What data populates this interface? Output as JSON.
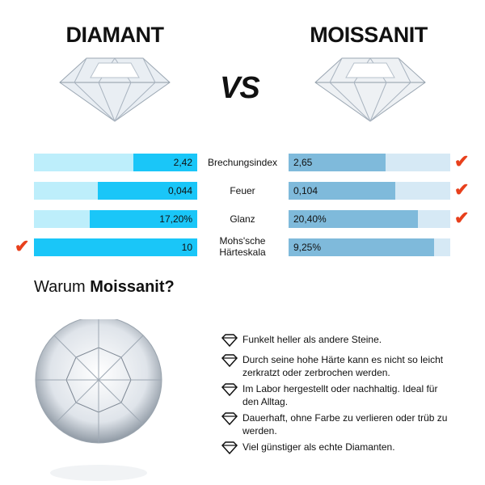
{
  "header": {
    "left_title": "DIAMANT",
    "vs": "VS",
    "right_title": "MOISSANIT"
  },
  "colors": {
    "diamond_fill": "#1ac6f8",
    "diamond_track": "#bdeefb",
    "moissanite_fill": "#7fbadb",
    "moissanite_track": "#d6e9f5",
    "check": "#e8401c"
  },
  "comparison": [
    {
      "label": "Brechungsindex",
      "diamant": "2,42",
      "moissanit": "2,65",
      "diamant_fill": 0.39,
      "moissanit_fill": 0.6,
      "winner": "moissanit"
    },
    {
      "label": "Feuer",
      "diamant": "0,044",
      "moissanit": "0,104",
      "diamant_fill": 0.61,
      "moissanit_fill": 0.66,
      "winner": "moissanit"
    },
    {
      "label": "Glanz",
      "diamant": "17,20%",
      "moissanit": "20,40%",
      "diamant_fill": 0.66,
      "moissanit_fill": 0.8,
      "winner": "moissanit"
    },
    {
      "label": "Mohs'sche Härteskala",
      "diamant": "10",
      "moissanit": "9,25%",
      "diamant_fill": 1.0,
      "moissanit_fill": 0.9,
      "winner": "diamant"
    }
  ],
  "why": {
    "prefix": "Warum ",
    "bold": "Moissanit?"
  },
  "features": [
    "Funkelt heller als andere Steine.",
    "Durch seine hohe Härte kann es nicht so leicht zerkratzt oder zerbrochen werden.",
    "Im Labor hergestellt oder nachhaltig. Ideal für den Alltag.",
    "Dauerhaft, ohne Farbe zu verlieren oder trüb zu werden.",
    "Viel günstiger als echte Diamanten."
  ]
}
